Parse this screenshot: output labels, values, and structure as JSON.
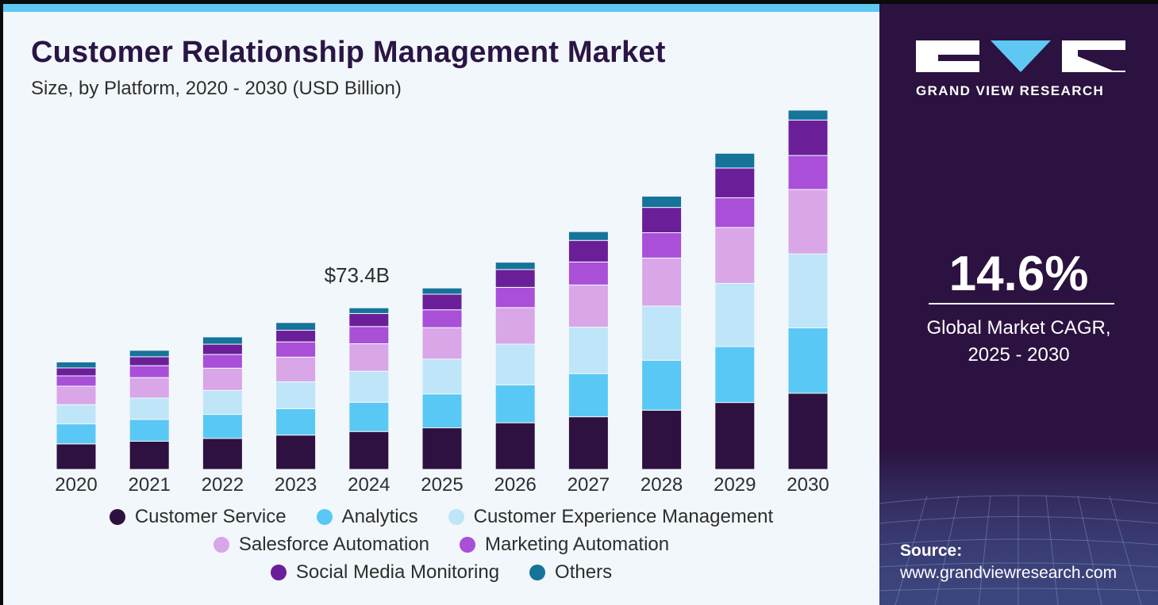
{
  "title": "Customer Relationship Management Market",
  "subtitle": "Size, by Platform, 2020 - 2030 (USD Billion)",
  "brand": {
    "name": "GRAND VIEW RESEARCH"
  },
  "cagr": {
    "value": "14.6%",
    "label_line1": "Global Market CAGR,",
    "label_line2": "2025 - 2030"
  },
  "source": {
    "label": "Source:",
    "url": "www.grandviewresearch.com"
  },
  "colors": {
    "left_bg": "#f2f7fb",
    "right_bg": "#2b1240",
    "accent": "#5ec8f2",
    "title": "#2a1545"
  },
  "chart_data": {
    "type": "bar",
    "stacked": true,
    "title": "Customer Relationship Management Market",
    "subtitle": "Size, by Platform, 2020 - 2030 (USD Billion)",
    "categories": [
      "2020",
      "2021",
      "2022",
      "2023",
      "2024",
      "2025",
      "2026",
      "2027",
      "2028",
      "2029",
      "2030"
    ],
    "totals": [
      48.8,
      54.1,
      60.2,
      66.7,
      73.4,
      82.4,
      94.1,
      108.0,
      124.1,
      143.6,
      163.2
    ],
    "annotations": [
      {
        "category": "2024",
        "text": "$73.4B"
      }
    ],
    "series": [
      {
        "name": "Customer Service",
        "color": "#2e1140",
        "values": [
          11.6,
          12.8,
          14.1,
          15.6,
          17.2,
          18.9,
          21.2,
          23.9,
          26.9,
          30.4,
          34.6
        ]
      },
      {
        "name": "Analytics",
        "color": "#5ac8f5",
        "values": [
          9.1,
          9.9,
          10.9,
          12.0,
          13.3,
          15.4,
          17.2,
          19.6,
          22.7,
          25.4,
          29.7
        ]
      },
      {
        "name": "Customer Experience Management",
        "color": "#bfe6f8",
        "values": [
          8.7,
          9.7,
          10.9,
          12.2,
          14.1,
          15.8,
          18.5,
          21.1,
          24.6,
          28.7,
          33.6
        ]
      },
      {
        "name": "Salesforce Automation",
        "color": "#d9a6e8",
        "values": [
          8.4,
          9.3,
          10.1,
          11.2,
          12.5,
          14.3,
          16.6,
          19.2,
          21.8,
          25.4,
          29.3
        ]
      },
      {
        "name": "Marketing Automation",
        "color": "#a94fd8",
        "values": [
          4.7,
          5.4,
          6.2,
          6.9,
          7.8,
          8.1,
          9.2,
          10.4,
          11.5,
          13.5,
          15.4
        ]
      },
      {
        "name": "Social Media Monitoring",
        "color": "#6a1f99",
        "values": [
          3.6,
          4.1,
          4.7,
          5.3,
          5.9,
          7.1,
          8.1,
          9.8,
          11.5,
          13.5,
          16.1
        ]
      },
      {
        "name": "Others",
        "color": "#16739a",
        "values": [
          2.7,
          2.9,
          3.3,
          3.5,
          2.6,
          2.8,
          3.3,
          4.0,
          5.1,
          6.7,
          4.5
        ]
      }
    ],
    "legend_rows": [
      [
        "Customer Service",
        "Analytics",
        "Customer Experience Management"
      ],
      [
        "Salesforce Automation",
        "Marketing Automation"
      ],
      [
        "Social Media Monitoring",
        "Others"
      ]
    ],
    "ylim": [
      0,
      170
    ],
    "grid": false,
    "legend_position": "bottom"
  }
}
